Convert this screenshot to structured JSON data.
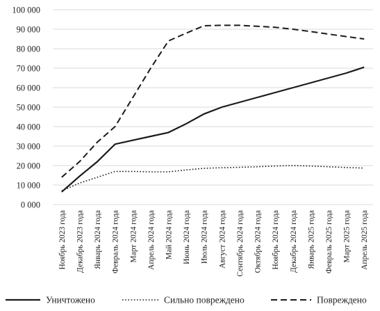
{
  "chart_data": {
    "type": "line",
    "title": "",
    "xlabel": "",
    "ylabel": "",
    "ylim": [
      0,
      100000
    ],
    "y_ticks": [
      0,
      10000,
      20000,
      30000,
      40000,
      50000,
      60000,
      70000,
      80000,
      90000,
      100000
    ],
    "y_tick_labels": [
      "0 000",
      "10 000",
      "20 000",
      "30 000",
      "40 000",
      "50 000",
      "60 000",
      "70 000",
      "80 000",
      "90 000",
      "100 000"
    ],
    "categories": [
      "Ноябрь 2023 года",
      "Декабрь 2023 года",
      "Январь 2024 года",
      "Февраль 2024 года",
      "Март 2024 года",
      "Апрель 2024 года",
      "Май 2024 года",
      "Июнь 2024 года",
      "Июль 2024 года",
      "Август 2024 года",
      "Сентябрь 2024 года",
      "Октябрь 2024 года",
      "Ноябрь 2024 года",
      "Декабрь 2024 года",
      "Январь 2025 года",
      "Февраль 2025 года",
      "Март 2025 года",
      "Апрель 2025 года"
    ],
    "grid": true,
    "legend_position": "bottom",
    "series": [
      {
        "name": "Уничтожено",
        "style": "solid",
        "color": "#1a1a1a",
        "values": [
          6500,
          14500,
          22000,
          31000,
          33000,
          35000,
          37000,
          41500,
          46500,
          50000,
          52500,
          55000,
          57500,
          60000,
          62500,
          65000,
          67500,
          70500
        ]
      },
      {
        "name": "Сильно повреждено",
        "style": "dotted",
        "color": "#1a1a1a",
        "values": [
          7000,
          11000,
          14000,
          17000,
          17000,
          16800,
          16800,
          17800,
          18600,
          18900,
          19100,
          19400,
          19800,
          20000,
          19800,
          19400,
          19000,
          18700
        ]
      },
      {
        "name": "Повреждено",
        "style": "dashed",
        "color": "#1a1a1a",
        "values": [
          14000,
          22000,
          32000,
          40000,
          55000,
          70000,
          84000,
          88000,
          91800,
          92000,
          92000,
          91500,
          91000,
          90000,
          88800,
          87500,
          86200,
          85000
        ]
      }
    ]
  }
}
